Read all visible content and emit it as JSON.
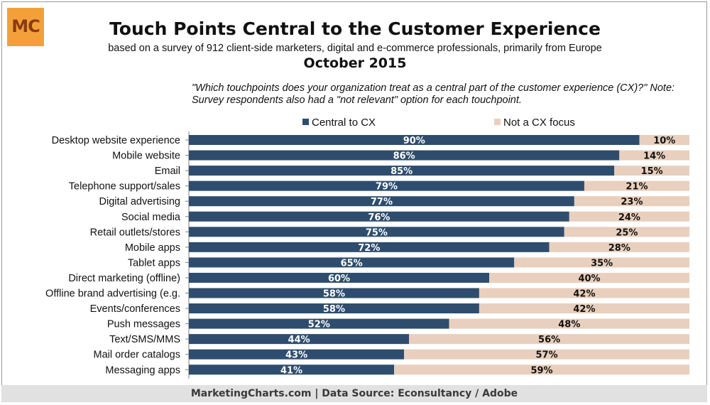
{
  "logo_text": "MC",
  "title": "Touch Points Central to the Customer Experience",
  "subtitle": "based on a survey of 912 client-side marketers, digital and e-commerce professionals, primarily from Europe",
  "date": "October 2015",
  "question": "\"Which touchpoints does your organization treat as a central part of the customer experience (CX)?\" Note: Survey respondents also had a \"not relevant\" option for each touchpoint.",
  "footer": "MarketingCharts.com | Data Source: Econsultancy / Adobe",
  "colors": {
    "central": "#2e4d6e",
    "not_focus": "#e9cfbd",
    "axis": "#7f7f7f"
  },
  "chart_data": {
    "type": "bar",
    "orientation": "horizontal",
    "stacked": true,
    "categories": [
      "Desktop website experience",
      "Mobile website",
      "Email",
      "Telephone support/sales",
      "Digital advertising",
      "Social media",
      "Retail outlets/stores",
      "Mobile apps",
      "Tablet apps",
      "Direct marketing (offline)",
      "Offline brand advertising (e.g.",
      "Events/conferences",
      "Push messages",
      "Text/SMS/MMS",
      "Mail order catalogs",
      "Messaging apps"
    ],
    "series": [
      {
        "name": "Central to CX",
        "values": [
          90,
          86,
          85,
          79,
          77,
          76,
          75,
          72,
          65,
          60,
          58,
          58,
          52,
          44,
          43,
          41
        ]
      },
      {
        "name": "Not a CX focus",
        "values": [
          10,
          14,
          15,
          21,
          23,
          24,
          25,
          28,
          35,
          40,
          42,
          42,
          48,
          56,
          57,
          59
        ]
      }
    ],
    "value_suffix": "%",
    "xlim": [
      0,
      100
    ],
    "legend_position": "top",
    "grid": false
  }
}
